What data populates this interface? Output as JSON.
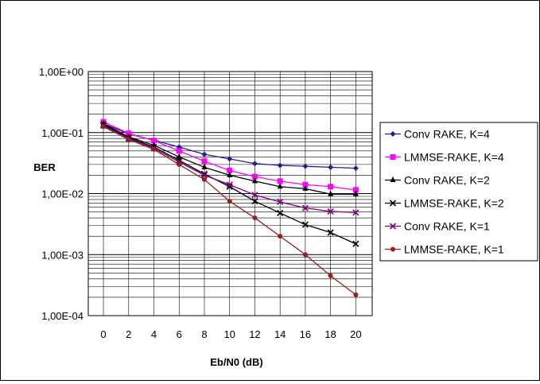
{
  "chart_data": {
    "type": "line",
    "title": "",
    "xlabel": "Eb/N0 (dB)",
    "ylabel": "BER",
    "y_scale": "log",
    "ylim": [
      0.0001,
      1
    ],
    "y_tick_labels": [
      "1,00E+00",
      "1,00E-01",
      "1,00E-02",
      "1,00E-03",
      "1,00E-04"
    ],
    "categories": [
      "0",
      "2",
      "4",
      "6",
      "8",
      "10",
      "12",
      "14",
      "16",
      "18",
      "20"
    ],
    "grid": "major and minor horizontal (log), vertical at each category",
    "legend_position": "right",
    "series": [
      {
        "name": "Conv RAKE, K=4",
        "color": "#1f1f8f",
        "marker": "diamond",
        "values": [
          0.14,
          0.095,
          0.075,
          0.058,
          0.044,
          0.037,
          0.031,
          0.029,
          0.028,
          0.027,
          0.026
        ]
      },
      {
        "name": "LMMSE-RAKE, K=4",
        "color": "#ff00ff",
        "marker": "square",
        "values": [
          0.15,
          0.097,
          0.074,
          0.05,
          0.034,
          0.024,
          0.019,
          0.016,
          0.014,
          0.013,
          0.0115
        ]
      },
      {
        "name": "Conv RAKE, K=2",
        "color": "#000000",
        "marker": "triangle",
        "values": [
          0.14,
          0.085,
          0.062,
          0.04,
          0.027,
          0.02,
          0.016,
          0.013,
          0.012,
          0.0098,
          0.0098
        ]
      },
      {
        "name": "LMMSE-RAKE, K=2",
        "color": "#000000",
        "marker": "x",
        "values": [
          0.135,
          0.082,
          0.058,
          0.035,
          0.021,
          0.013,
          0.0075,
          0.0048,
          0.0031,
          0.0023,
          0.0015
        ]
      },
      {
        "name": "Conv RAKE, K=1",
        "color": "#800080",
        "marker": "x",
        "values": [
          0.13,
          0.08,
          0.055,
          0.033,
          0.02,
          0.014,
          0.0095,
          0.0073,
          0.0058,
          0.0051,
          0.0049
        ]
      },
      {
        "name": "LMMSE-RAKE, K=1",
        "color": "#9b1c1c",
        "marker": "circle",
        "values": [
          0.125,
          0.077,
          0.053,
          0.03,
          0.017,
          0.0075,
          0.004,
          0.002,
          0.001,
          0.00045,
          0.00022
        ]
      }
    ]
  }
}
